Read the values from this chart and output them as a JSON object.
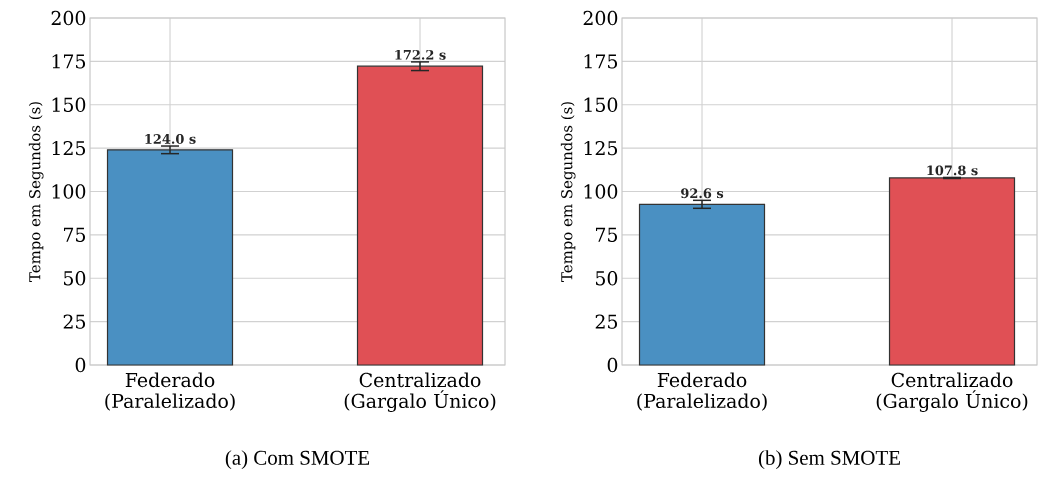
{
  "chart_data": [
    {
      "type": "bar",
      "title": "(a)  Com SMOTE",
      "ylabel": "Tempo em Segundos (s)",
      "categories": [
        "Federado (Paralelizado)",
        "Centralizado (Gargalo Único)"
      ],
      "values": [
        124.0,
        172.2
      ],
      "errors": [
        2.2,
        2.5
      ],
      "colors": [
        "#4a90c2",
        "#e05055"
      ],
      "value_labels": [
        "124.0 s",
        "172.2 s"
      ],
      "ylim": [
        0,
        200
      ],
      "yticks": [
        0,
        25,
        50,
        75,
        100,
        125,
        150,
        175,
        200
      ],
      "grid": true
    },
    {
      "type": "bar",
      "title": "(b)  Sem SMOTE",
      "ylabel": "Tempo em Segundos (s)",
      "categories": [
        "Federado (Paralelizado)",
        "Centralizado (Gargalo Único)"
      ],
      "values": [
        92.6,
        107.8
      ],
      "errors": [
        2.3,
        0.3
      ],
      "colors": [
        "#4a90c2",
        "#e05055"
      ],
      "value_labels": [
        "92.6 s",
        "107.8 s"
      ],
      "ylim": [
        0,
        200
      ],
      "yticks": [
        0,
        25,
        50,
        75,
        100,
        125,
        150,
        175,
        200
      ],
      "grid": true
    }
  ]
}
